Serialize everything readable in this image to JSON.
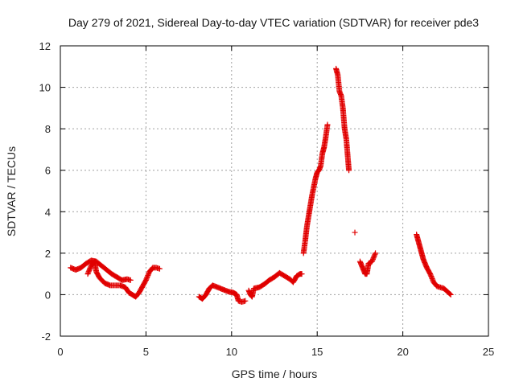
{
  "chart_data": {
    "type": "scatter",
    "title": "Day 279 of 2021, Sidereal Day-to-day VTEC variation (SDTVAR) for receiver pde3",
    "xlabel": "GPS time / hours",
    "ylabel": "SDTVAR / TECUs",
    "xlim": [
      0,
      25
    ],
    "ylim": [
      -2,
      12
    ],
    "x_ticks": [
      "0",
      "5",
      "10",
      "15",
      "20",
      "25"
    ],
    "y_ticks": [
      "-2",
      "0",
      "2",
      "4",
      "6",
      "8",
      "10",
      "12"
    ],
    "grid": true,
    "marker": "plus",
    "series_color": "#e00000",
    "series": [
      {
        "name": "SDTVAR",
        "segments": [
          [
            [
              0.6,
              1.3
            ],
            [
              0.9,
              1.2
            ],
            [
              1.2,
              1.3
            ],
            [
              1.5,
              1.5
            ],
            [
              1.8,
              1.65
            ],
            [
              2.1,
              1.6
            ],
            [
              2.4,
              1.4
            ],
            [
              2.7,
              1.2
            ],
            [
              3.0,
              1.0
            ],
            [
              3.3,
              0.85
            ],
            [
              3.6,
              0.7
            ],
            [
              3.9,
              0.75
            ],
            [
              4.1,
              0.7
            ]
          ],
          [
            [
              1.6,
              1.0
            ],
            [
              1.8,
              1.4
            ],
            [
              2.0,
              1.6
            ],
            [
              2.1,
              1.1
            ],
            [
              2.3,
              0.8
            ],
            [
              2.6,
              0.55
            ],
            [
              2.9,
              0.45
            ],
            [
              3.2,
              0.45
            ],
            [
              3.5,
              0.45
            ],
            [
              3.8,
              0.35
            ],
            [
              4.0,
              0.1
            ],
            [
              4.2,
              0.0
            ],
            [
              4.4,
              -0.1
            ],
            [
              4.6,
              0.1
            ],
            [
              4.8,
              0.4
            ],
            [
              5.0,
              0.7
            ],
            [
              5.2,
              1.1
            ],
            [
              5.4,
              1.3
            ],
            [
              5.6,
              1.3
            ],
            [
              5.8,
              1.25
            ]
          ],
          [
            [
              8.1,
              -0.1
            ],
            [
              8.3,
              -0.2
            ],
            [
              8.5,
              0.0
            ],
            [
              8.7,
              0.3
            ],
            [
              8.9,
              0.45
            ],
            [
              9.2,
              0.35
            ],
            [
              9.5,
              0.25
            ],
            [
              9.8,
              0.15
            ],
            [
              10.1,
              0.1
            ],
            [
              10.3,
              0.0
            ],
            [
              10.4,
              -0.3
            ],
            [
              10.6,
              -0.35
            ],
            [
              10.8,
              -0.3
            ]
          ],
          [
            [
              11.0,
              0.2
            ],
            [
              11.1,
              0.0
            ],
            [
              11.2,
              -0.1
            ],
            [
              11.3,
              0.3
            ],
            [
              11.6,
              0.35
            ],
            [
              11.9,
              0.5
            ],
            [
              12.2,
              0.7
            ],
            [
              12.5,
              0.85
            ],
            [
              12.8,
              1.05
            ],
            [
              13.1,
              0.9
            ],
            [
              13.4,
              0.75
            ],
            [
              13.6,
              0.6
            ],
            [
              13.8,
              0.9
            ],
            [
              14.0,
              1.0
            ],
            [
              14.1,
              1.0
            ]
          ],
          [
            [
              14.2,
              2.0
            ],
            [
              14.3,
              2.6
            ],
            [
              14.4,
              3.3
            ],
            [
              14.5,
              3.8
            ],
            [
              14.6,
              4.3
            ],
            [
              14.7,
              4.8
            ],
            [
              14.8,
              5.2
            ],
            [
              14.9,
              5.6
            ],
            [
              15.0,
              5.9
            ],
            [
              15.1,
              6.0
            ],
            [
              15.2,
              6.2
            ],
            [
              15.3,
              6.8
            ],
            [
              15.4,
              7.1
            ],
            [
              15.5,
              7.6
            ],
            [
              15.6,
              8.2
            ]
          ],
          [
            [
              16.1,
              10.9
            ],
            [
              16.2,
              10.6
            ],
            [
              16.3,
              9.8
            ],
            [
              16.4,
              9.6
            ],
            [
              16.5,
              9.0
            ],
            [
              16.6,
              8.0
            ],
            [
              16.7,
              7.5
            ],
            [
              16.8,
              6.5
            ],
            [
              16.85,
              6.0
            ]
          ],
          [
            [
              17.2,
              3.0
            ]
          ],
          [
            [
              17.5,
              1.6
            ],
            [
              17.6,
              1.4
            ],
            [
              17.7,
              1.2
            ],
            [
              17.8,
              1.0
            ],
            [
              17.9,
              1.0
            ],
            [
              18.0,
              1.5
            ],
            [
              18.2,
              1.6
            ],
            [
              18.4,
              2.0
            ]
          ],
          [
            [
              20.8,
              2.9
            ],
            [
              20.9,
              2.6
            ],
            [
              21.0,
              2.3
            ],
            [
              21.1,
              2.0
            ],
            [
              21.2,
              1.7
            ],
            [
              21.3,
              1.5
            ],
            [
              21.4,
              1.3
            ],
            [
              21.6,
              1.0
            ],
            [
              21.8,
              0.6
            ],
            [
              22.0,
              0.4
            ],
            [
              22.2,
              0.35
            ],
            [
              22.4,
              0.3
            ],
            [
              22.6,
              0.15
            ],
            [
              22.8,
              0.0
            ]
          ]
        ]
      }
    ]
  }
}
